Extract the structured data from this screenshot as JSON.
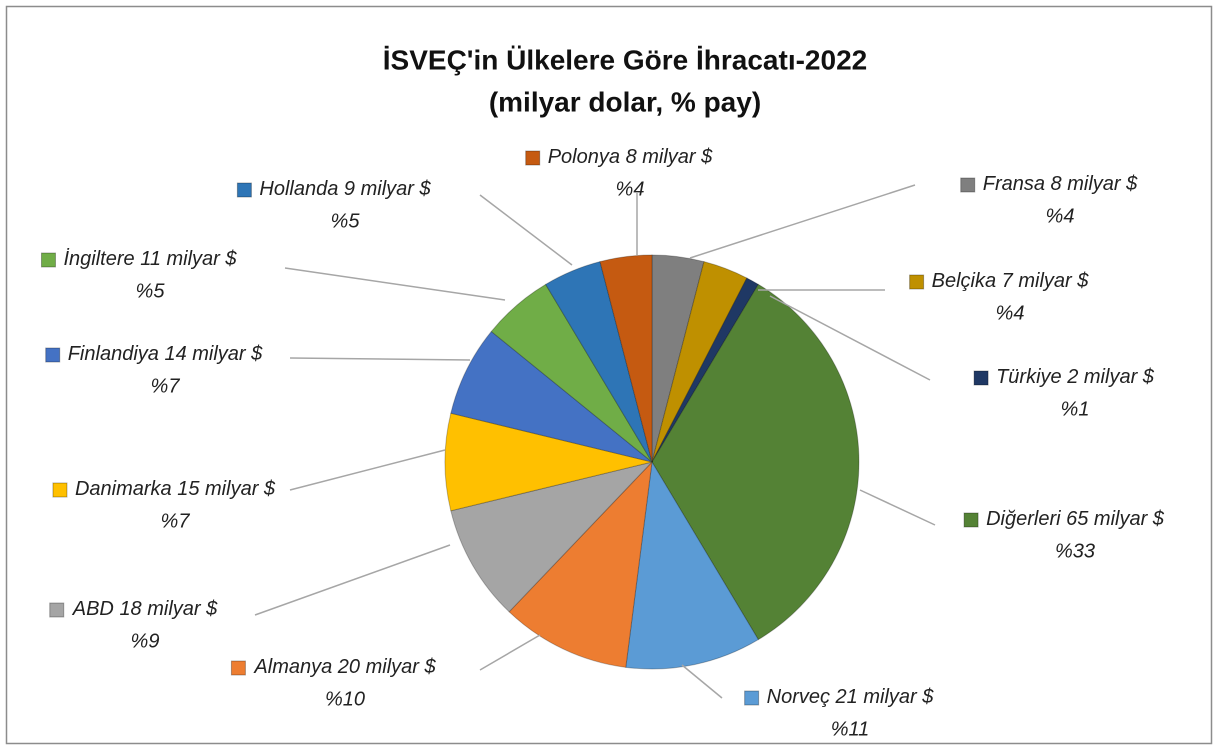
{
  "chart_data": {
    "type": "pie",
    "title": "İSVEÇ'in Ülkelere Göre İhracatı-2022",
    "subtitle": "(milyar dolar, % pay)",
    "categories": [
      "Fransa",
      "Belçika",
      "Türkiye",
      "Diğerleri",
      "Norveç",
      "Almanya",
      "ABD",
      "Danimarka",
      "Finlandiya",
      "İngiltere",
      "Hollanda",
      "Polonya"
    ],
    "values": [
      8,
      7,
      2,
      65,
      21,
      20,
      18,
      15,
      14,
      11,
      9,
      8
    ],
    "value_labels": [
      "8 milyar $",
      "7 milyar $",
      "2 milyar $",
      "65 milyar $",
      "21 milyar $",
      "20 milyar $",
      "18 milyar $",
      "15 milyar $",
      "14 milyar $",
      "11 milyar $",
      "9 milyar $",
      "8 milyar $"
    ],
    "percentages": [
      4,
      4,
      1,
      33,
      11,
      10,
      9,
      7,
      7,
      5,
      5,
      4
    ],
    "percentage_labels": [
      "%4",
      "%4",
      "%1",
      "%33",
      "%11",
      "%10",
      "%9",
      "%7",
      "%7",
      "%5",
      "%5",
      "%4"
    ],
    "colors": [
      "#7f7f7f",
      "#bf9000",
      "#1f3864",
      "#548235",
      "#5b9bd5",
      "#ed7d31",
      "#a5a5a5",
      "#ffc000",
      "#4472c4",
      "#70ad47",
      "#2e75b6",
      "#c55a11"
    ]
  }
}
